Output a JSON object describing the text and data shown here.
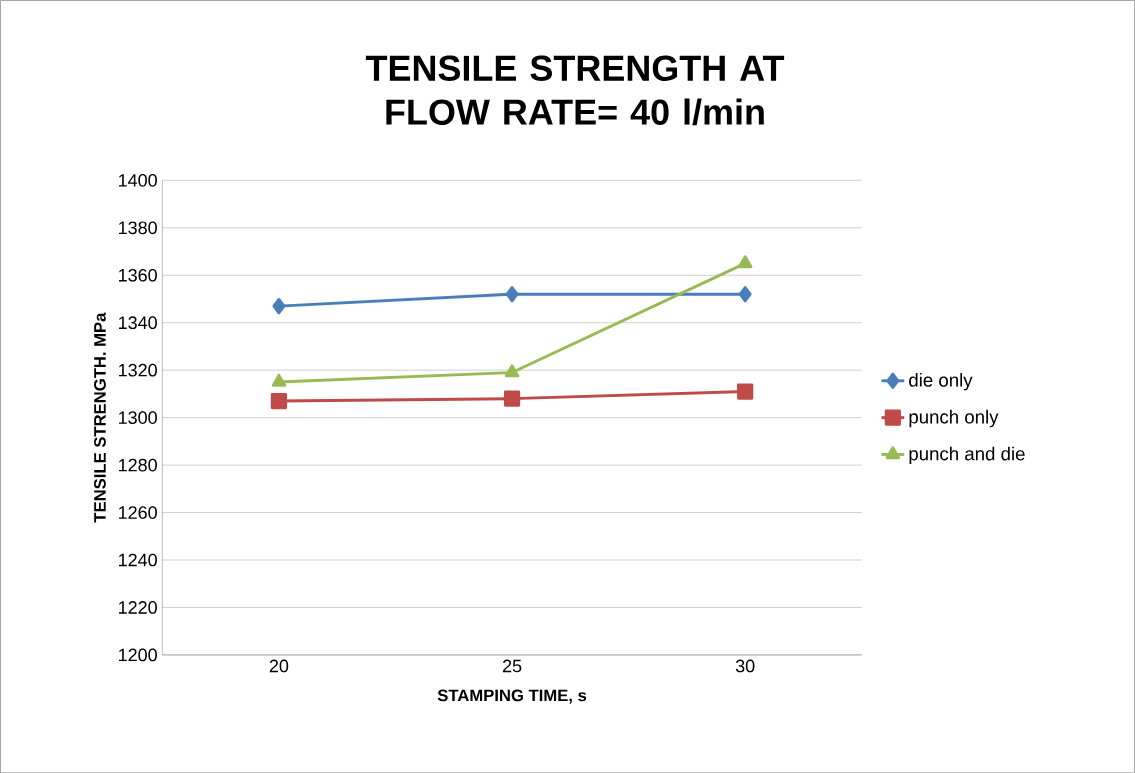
{
  "chart_data": {
    "type": "line",
    "title": "TENSILE STRENGTH AT FLOW RATE= 40 l/min",
    "xlabel": "STAMPING TIME, s",
    "ylabel": "TENSILE STRENGTH. MPa",
    "categories": [
      "20",
      "25",
      "30"
    ],
    "series": [
      {
        "name": "die only",
        "color": "#4a7ebb",
        "marker": "diamond",
        "values": [
          1347,
          1352,
          1352
        ]
      },
      {
        "name": "punch only",
        "color": "#be4b48",
        "marker": "square",
        "values": [
          1307,
          1308,
          1311
        ]
      },
      {
        "name": "punch and die",
        "color": "#98b954",
        "marker": "triangle",
        "values": [
          1315,
          1319,
          1365
        ]
      }
    ],
    "ylim": [
      1200,
      1400
    ],
    "yticks": [
      1200,
      1220,
      1240,
      1260,
      1280,
      1300,
      1320,
      1340,
      1360,
      1380,
      1400
    ],
    "grid": "y",
    "legend": "right",
    "line_style": "solid"
  }
}
